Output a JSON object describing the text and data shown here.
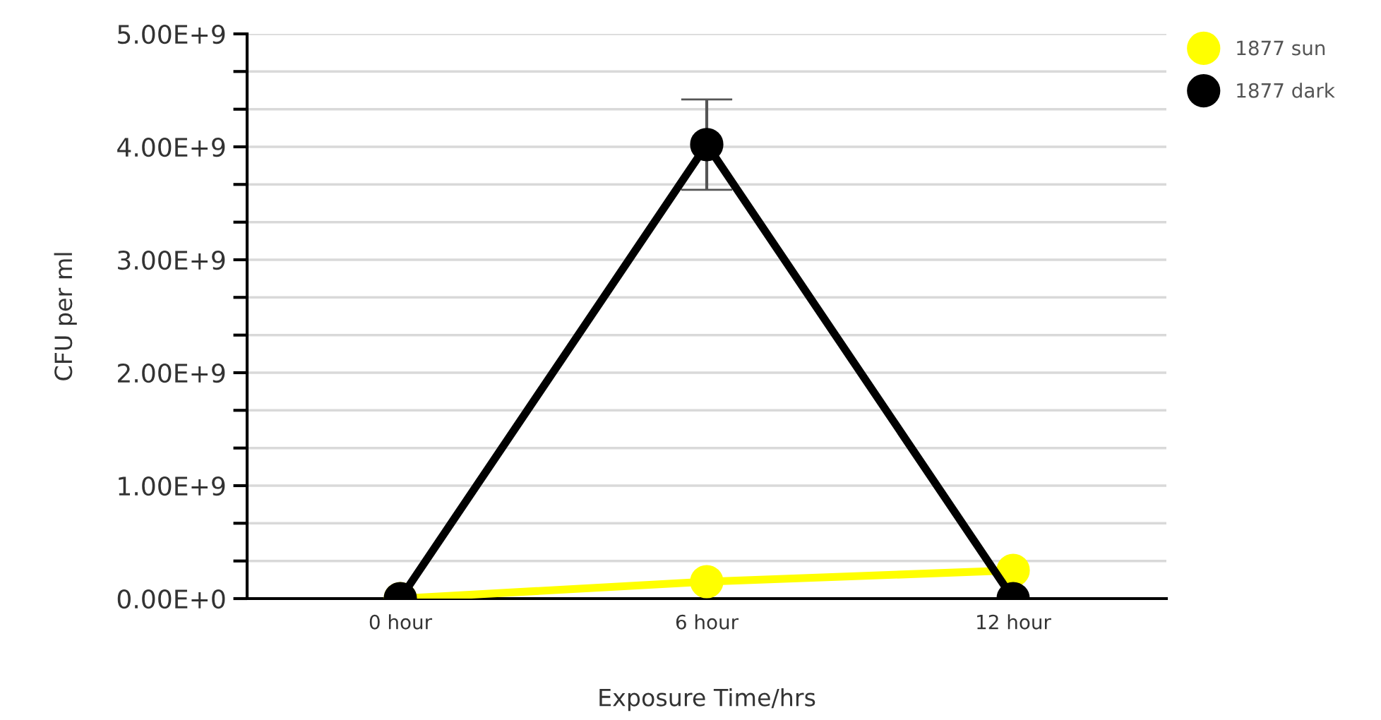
{
  "chart_data": {
    "type": "line",
    "xlabel": "Exposure Time/hrs",
    "ylabel": "CFU per ml",
    "categories": [
      "0 hour",
      "6 hour",
      "12 hour"
    ],
    "series": [
      {
        "name": "1877 sun",
        "color": "#ffff00",
        "values": [
          0,
          150000000,
          250000000
        ]
      },
      {
        "name": "1877 dark",
        "color": "#000000",
        "values": [
          0,
          4020000000,
          0
        ],
        "errors": [
          null,
          400000000,
          null
        ]
      }
    ],
    "ylim": [
      0,
      5000000000
    ],
    "yticks": [
      {
        "value": 0,
        "label": "0.00E+0"
      },
      {
        "value": 333000000,
        "label": null
      },
      {
        "value": 667000000,
        "label": null
      },
      {
        "value": 1000000000,
        "label": "1.00E+9"
      },
      {
        "value": 1333000000,
        "label": null
      },
      {
        "value": 1667000000,
        "label": null
      },
      {
        "value": 2000000000,
        "label": "2.00E+9"
      },
      {
        "value": 2333000000,
        "label": null
      },
      {
        "value": 2667000000,
        "label": null
      },
      {
        "value": 3000000000,
        "label": "3.00E+9"
      },
      {
        "value": 3333000000,
        "label": null
      },
      {
        "value": 3667000000,
        "label": null
      },
      {
        "value": 4000000000,
        "label": "4.00E+9"
      },
      {
        "value": 4333000000,
        "label": null
      },
      {
        "value": 4667000000,
        "label": null
      },
      {
        "value": 5000000000,
        "label": "5.00E+9"
      }
    ],
    "grid": "y",
    "legend": "top right",
    "marker": "circle",
    "line_style": "solid"
  }
}
